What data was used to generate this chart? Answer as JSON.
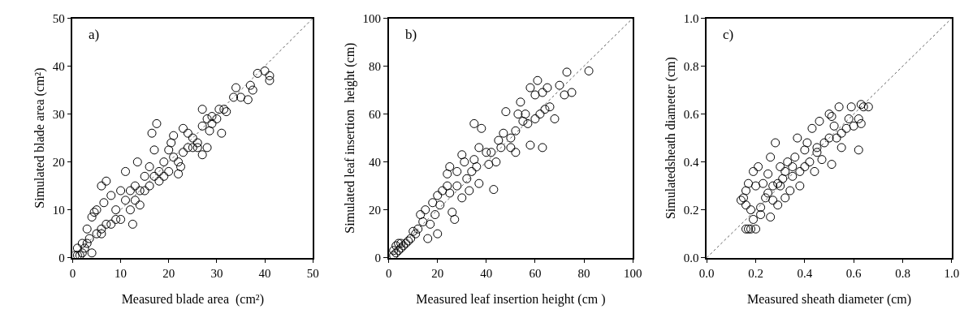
{
  "chart_data": [
    {
      "type": "scatter",
      "annotations": [
        "a)"
      ],
      "xlabel": "Measured blade area  (cm²)",
      "ylabel": "Simulated blade area (cm²)",
      "xlim": [
        0,
        50
      ],
      "ylim": [
        0,
        50
      ],
      "xticks": [
        0,
        10,
        20,
        30,
        40,
        50
      ],
      "yticks": [
        0,
        10,
        20,
        30,
        40,
        50
      ],
      "series": [
        {
          "color": "#000000",
          "marker": "circle",
          "x": [
            41,
            41,
            40,
            38.5,
            37.5,
            37,
            36.5,
            35,
            34,
            33.5,
            31,
            30.5,
            31.5,
            32,
            29,
            28.5,
            27,
            27,
            27,
            28,
            28,
            26,
            25,
            24,
            23,
            22.5,
            22,
            21,
            20.5,
            20,
            19,
            18,
            17.5,
            17,
            16.5,
            16,
            15,
            14,
            13.5,
            13,
            12.5,
            12,
            11,
            11,
            10,
            10,
            9,
            8,
            8,
            7,
            6.5,
            6,
            6,
            5,
            5,
            4.5,
            4,
            4,
            3.5,
            3,
            3,
            2.5,
            2,
            2,
            1.5,
            1,
            1,
            0.5,
            18,
            19,
            21,
            22,
            23,
            24,
            25,
            26,
            14,
            15,
            16,
            13,
            12,
            9,
            7,
            6,
            20,
            17,
            29,
            30
          ],
          "values": [
            37,
            38,
            39,
            38.5,
            35,
            36,
            33,
            33.5,
            35.5,
            33.5,
            26,
            31,
            31,
            30.5,
            29.5,
            26.5,
            31,
            27.5,
            21.5,
            23,
            29,
            24,
            23,
            26,
            27,
            19,
            17.5,
            25.5,
            24,
            22.5,
            20,
            16,
            28,
            22.5,
            26,
            19,
            17,
            11,
            20,
            15,
            7,
            14,
            18,
            12,
            14,
            8,
            10,
            13,
            7,
            16,
            11.5,
            15,
            6,
            10,
            5,
            9.5,
            8.5,
            1,
            4,
            6,
            3,
            2,
            1,
            3,
            0.5,
            2,
            0.5,
            0.5,
            18,
            17,
            21,
            20,
            22,
            23,
            25,
            23,
            14,
            14,
            15,
            12,
            10,
            8,
            7,
            5,
            18,
            17,
            28,
            29
          ]
        },
        {
          "type": "line",
          "color": "#606060",
          "line_style": "dotted",
          "marker": "none",
          "x": [
            0,
            50
          ],
          "values": [
            0,
            50
          ]
        }
      ]
    },
    {
      "type": "scatter",
      "annotations": [
        "b)"
      ],
      "xlabel": "Measured leaf insertion height (cm )",
      "ylabel": "Simulated leaf insertion  height (cm)",
      "xlim": [
        0,
        100
      ],
      "ylim": [
        0,
        100
      ],
      "xticks": [
        0,
        20,
        40,
        60,
        80,
        100
      ],
      "yticks": [
        0,
        20,
        40,
        60,
        80,
        100
      ],
      "series": [
        {
          "color": "#000000",
          "marker": "circle",
          "x": [
            82,
            73,
            75,
            72,
            70,
            68,
            66,
            65,
            63,
            61,
            60,
            58,
            57,
            58,
            56,
            54,
            53,
            52,
            52,
            50,
            48,
            47,
            45,
            44,
            43,
            42,
            41,
            40,
            38,
            37,
            35,
            35,
            37,
            34,
            33,
            31,
            30,
            30,
            28,
            27,
            26,
            25,
            24,
            24,
            22,
            21,
            20,
            20,
            19,
            18,
            17,
            16,
            15,
            14,
            13,
            12,
            11,
            10,
            9,
            8,
            7,
            6,
            5,
            4,
            3,
            3,
            2,
            2,
            4,
            5,
            46,
            50,
            55,
            60,
            62,
            64,
            36,
            32,
            28,
            25,
            63
          ],
          "values": [
            78,
            77.5,
            69,
            68,
            72,
            58,
            63,
            71,
            69,
            74,
            68,
            71,
            56,
            47,
            60,
            65,
            60,
            53,
            44,
            46,
            61,
            52,
            49,
            40,
            28.5,
            44,
            39,
            44,
            54,
            46,
            56,
            41,
            31,
            36,
            28,
            40,
            43,
            25,
            36,
            16,
            19,
            38,
            35,
            30,
            28,
            22,
            10,
            26,
            18,
            23,
            14,
            8,
            20,
            15,
            18,
            12,
            10,
            11,
            8,
            7,
            6,
            5,
            4,
            3,
            2,
            5,
            1,
            3,
            6,
            6,
            46,
            50,
            57,
            58,
            60,
            62,
            38,
            33,
            30,
            27,
            46
          ]
        },
        {
          "type": "line",
          "color": "#606060",
          "line_style": "dotted",
          "marker": "none",
          "x": [
            0,
            100
          ],
          "values": [
            0,
            100
          ]
        }
      ]
    },
    {
      "type": "scatter",
      "annotations": [
        "c)"
      ],
      "xlabel": "Measured sheath diameter (cm)",
      "ylabel": "Simulatedsheath diameter (cm)",
      "xlim": [
        0,
        1
      ],
      "ylim": [
        0,
        1
      ],
      "xticks": [
        {
          "value": 0,
          "label": "0.0"
        },
        0.2,
        0.4,
        0.6,
        0.8,
        {
          "value": 1,
          "label": "1.0"
        }
      ],
      "yticks": [
        {
          "value": 0,
          "label": "0.0"
        },
        0.2,
        0.4,
        0.6,
        0.8,
        {
          "value": 1,
          "label": "1.0"
        }
      ],
      "series": [
        {
          "color": "#000000",
          "marker": "circle",
          "x": [
            0.66,
            0.64,
            0.63,
            0.62,
            0.63,
            0.62,
            0.59,
            0.54,
            0.58,
            0.57,
            0.55,
            0.52,
            0.51,
            0.5,
            0.5,
            0.51,
            0.48,
            0.46,
            0.45,
            0.43,
            0.42,
            0.41,
            0.4,
            0.38,
            0.37,
            0.36,
            0.35,
            0.34,
            0.33,
            0.32,
            0.31,
            0.3,
            0.29,
            0.29,
            0.28,
            0.27,
            0.26,
            0.26,
            0.25,
            0.24,
            0.23,
            0.22,
            0.21,
            0.2,
            0.2,
            0.19,
            0.18,
            0.17,
            0.17,
            0.16,
            0.16,
            0.15,
            0.16,
            0.14,
            0.18,
            0.19,
            0.22,
            0.25,
            0.3,
            0.35,
            0.4,
            0.45,
            0.47,
            0.53,
            0.55,
            0.6,
            0.44,
            0.38,
            0.32,
            0.27
          ],
          "values": [
            0.63,
            0.63,
            0.64,
            0.58,
            0.56,
            0.45,
            0.63,
            0.63,
            0.58,
            0.54,
            0.52,
            0.55,
            0.59,
            0.6,
            0.5,
            0.39,
            0.48,
            0.57,
            0.44,
            0.54,
            0.4,
            0.48,
            0.45,
            0.36,
            0.5,
            0.42,
            0.34,
            0.28,
            0.4,
            0.36,
            0.33,
            0.38,
            0.31,
            0.22,
            0.48,
            0.3,
            0.42,
            0.17,
            0.35,
            0.25,
            0.31,
            0.21,
            0.38,
            0.3,
            0.12,
            0.36,
            0.12,
            0.31,
            0.12,
            0.12,
            0.28,
            0.25,
            0.22,
            0.24,
            0.2,
            0.16,
            0.18,
            0.27,
            0.3,
            0.38,
            0.38,
            0.46,
            0.41,
            0.5,
            0.46,
            0.55,
            0.36,
            0.3,
            0.25,
            0.24
          ]
        },
        {
          "type": "line",
          "color": "#606060",
          "line_style": "dotted",
          "marker": "none",
          "x": [
            0,
            1
          ],
          "values": [
            0,
            1
          ]
        }
      ]
    }
  ]
}
